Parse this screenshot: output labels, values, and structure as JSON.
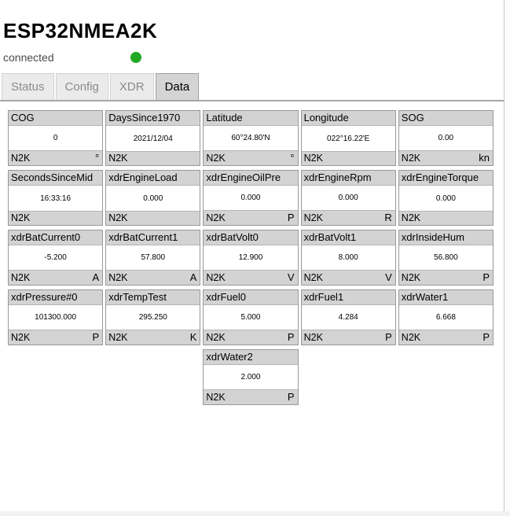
{
  "header": {
    "title": "ESP32NMEA2K",
    "status_text": "connected",
    "status_color": "#23a823"
  },
  "tabs": [
    {
      "label": "Status",
      "active": false
    },
    {
      "label": "Config",
      "active": false
    },
    {
      "label": "XDR",
      "active": false
    },
    {
      "label": "Data",
      "active": true
    }
  ],
  "cards": [
    {
      "label": "COG",
      "value": "0",
      "source": "N2K",
      "unit": "°"
    },
    {
      "label": "DaysSince1970",
      "value": "2021/12/04",
      "source": "N2K",
      "unit": ""
    },
    {
      "label": "Latitude",
      "value": "60°24.80'N",
      "source": "N2K",
      "unit": "°"
    },
    {
      "label": "Longitude",
      "value": "022°16.22'E",
      "source": "N2K",
      "unit": ""
    },
    {
      "label": "SOG",
      "value": "0.00",
      "source": "N2K",
      "unit": "kn"
    },
    {
      "label": "SecondsSinceMid",
      "value": "16:33:16",
      "source": "N2K",
      "unit": ""
    },
    {
      "label": "xdrEngineLoad",
      "value": "0.000",
      "source": "N2K",
      "unit": ""
    },
    {
      "label": "xdrEngineOilPre",
      "value": "0.000",
      "source": "N2K",
      "unit": "P"
    },
    {
      "label": "xdrEngineRpm",
      "value": "0.000",
      "source": "N2K",
      "unit": "R"
    },
    {
      "label": "xdrEngineTorque",
      "value": "0.000",
      "source": "N2K",
      "unit": ""
    },
    {
      "label": "xdrBatCurrent0",
      "value": "-5.200",
      "source": "N2K",
      "unit": "A"
    },
    {
      "label": "xdrBatCurrent1",
      "value": "57.800",
      "source": "N2K",
      "unit": "A"
    },
    {
      "label": "xdrBatVolt0",
      "value": "12.900",
      "source": "N2K",
      "unit": "V"
    },
    {
      "label": "xdrBatVolt1",
      "value": "8.000",
      "source": "N2K",
      "unit": "V"
    },
    {
      "label": "xdrInsideHum",
      "value": "56.800",
      "source": "N2K",
      "unit": "P"
    },
    {
      "label": "xdrPressure#0",
      "value": "101300.000",
      "source": "N2K",
      "unit": "P"
    },
    {
      "label": "xdrTempTest",
      "value": "295.250",
      "source": "N2K",
      "unit": "K"
    },
    {
      "label": "xdrFuel0",
      "value": "5.000",
      "source": "N2K",
      "unit": "P"
    },
    {
      "label": "xdrFuel1",
      "value": "4.284",
      "source": "N2K",
      "unit": "P"
    },
    {
      "label": "xdrWater1",
      "value": "6.668",
      "source": "N2K",
      "unit": "P"
    },
    {
      "label": "xdrWater2",
      "value": "2.000",
      "source": "N2K",
      "unit": "P",
      "column": 3
    }
  ]
}
